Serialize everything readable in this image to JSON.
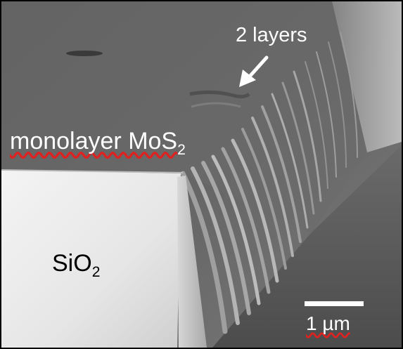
{
  "image": {
    "kind": "SEM micrograph (grayscale)",
    "material_labels": {
      "monolayer_prefix": "monolayer MoS",
      "monolayer_subscript": "2",
      "layers_annotation": "2 layers",
      "substrate_prefix": "SiO",
      "substrate_subscript": "2"
    },
    "scale_bar": {
      "text": "1 µm"
    },
    "colors": {
      "label_light": "#ffffff",
      "label_dark": "#000000",
      "spellcheck_underline": "#dd2222"
    }
  }
}
